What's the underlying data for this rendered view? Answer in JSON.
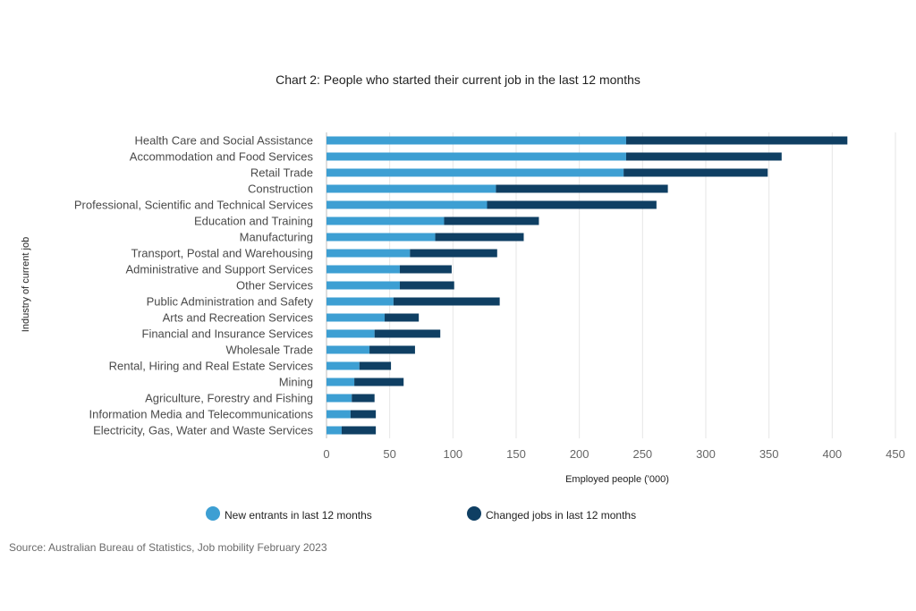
{
  "chart_data": {
    "type": "bar",
    "orientation": "horizontal",
    "stacked": true,
    "title": "Chart 2: People who started their current job in the last 12 months",
    "xlabel": "Employed people ('000)",
    "ylabel": "Industry of current job",
    "xlim": [
      0,
      450
    ],
    "xticks": [
      "0",
      "50",
      "100",
      "150",
      "200",
      "250",
      "300",
      "350",
      "400",
      "450"
    ],
    "grid": true,
    "legend_position": "bottom",
    "categories": [
      "Health Care and Social Assistance",
      "Accommodation and Food Services",
      "Retail Trade",
      "Construction",
      "Professional, Scientific and Technical Services",
      "Education and Training",
      "Manufacturing",
      "Transport, Postal and Warehousing",
      "Administrative and Support Services",
      "Other Services",
      "Public Administration and Safety",
      "Arts and Recreation Services",
      "Financial and Insurance Services",
      "Wholesale Trade",
      "Rental, Hiring and Real Estate Services",
      "Mining",
      "Agriculture, Forestry and Fishing",
      "Information Media and Telecommunications",
      "Electricity, Gas, Water and Waste Services"
    ],
    "series": [
      {
        "name": "New entrants in last 12 months",
        "color": "#3d9fd3",
        "values": [
          237,
          237,
          235,
          134,
          127,
          93,
          86,
          66,
          58,
          58,
          53,
          46,
          38,
          34,
          26,
          22,
          20,
          19,
          12
        ]
      },
      {
        "name": "Changed jobs in last 12 months",
        "color": "#0f3f63",
        "values": [
          175,
          123,
          114,
          136,
          134,
          75,
          70,
          69,
          41,
          43,
          84,
          27,
          52,
          36,
          25,
          39,
          18,
          20,
          27
        ]
      }
    ]
  },
  "source": "Source: Australian Bureau of Statistics, Job mobility February 2023"
}
